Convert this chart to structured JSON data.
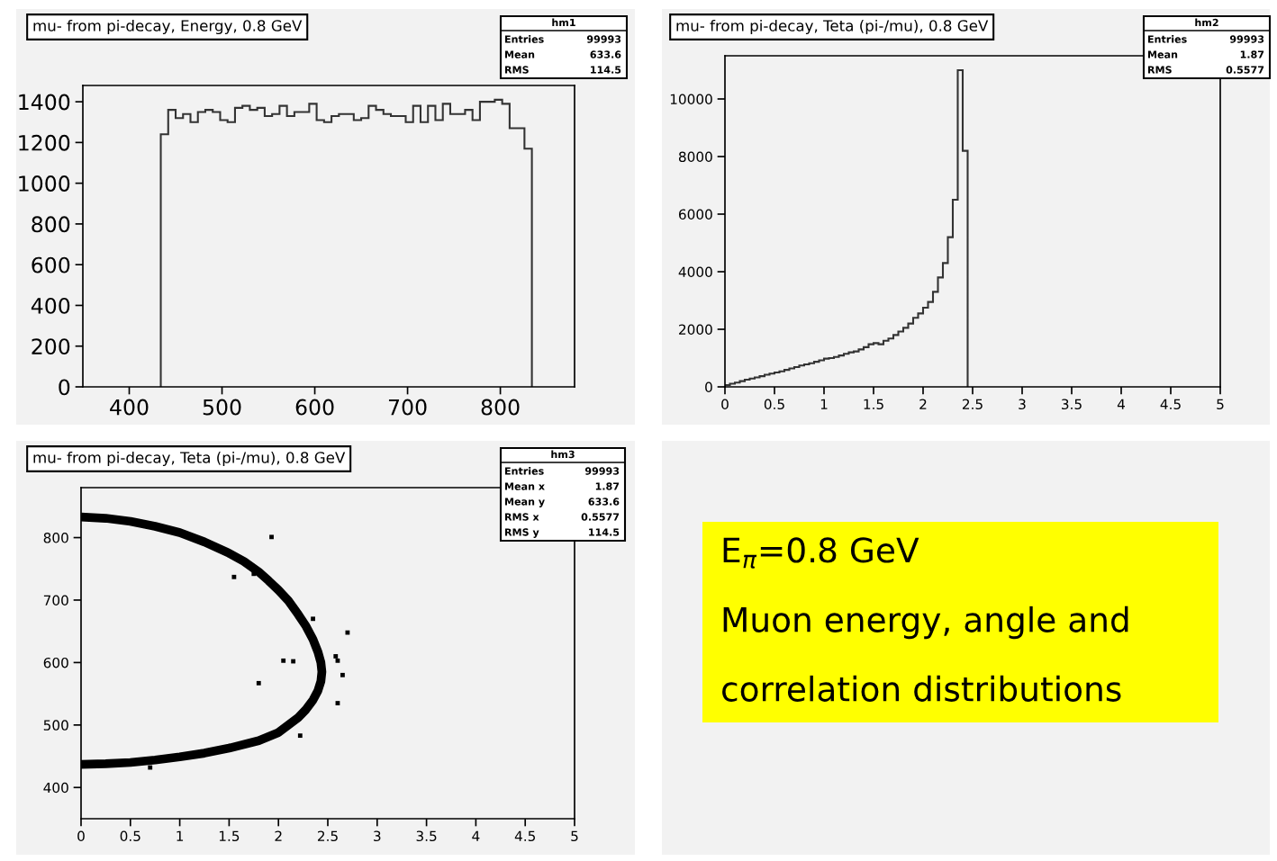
{
  "chart_data": [
    {
      "type": "histogram",
      "title": "mu- from pi-decay, Energy, 0.8 GeV",
      "color": "#333333",
      "bins": [
        434,
        442,
        450,
        458,
        466,
        474,
        482,
        490,
        498,
        506,
        514,
        522,
        530,
        538,
        546,
        554,
        562,
        570,
        578,
        586,
        594,
        602,
        610,
        618,
        626,
        634,
        642,
        650,
        658,
        666,
        674,
        682,
        690,
        698,
        706,
        714,
        722,
        730,
        738,
        746,
        754,
        762,
        770,
        778,
        786,
        794,
        802,
        810,
        818,
        826,
        834
      ],
      "values": [
        1240,
        1360,
        1320,
        1340,
        1300,
        1350,
        1360,
        1350,
        1310,
        1300,
        1370,
        1380,
        1360,
        1370,
        1330,
        1340,
        1380,
        1330,
        1350,
        1350,
        1390,
        1310,
        1300,
        1330,
        1340,
        1340,
        1310,
        1320,
        1380,
        1360,
        1340,
        1330,
        1330,
        1300,
        1380,
        1300,
        1380,
        1310,
        1390,
        1340,
        1340,
        1360,
        1310,
        1400,
        1400,
        1410,
        1390,
        1270,
        1270,
        1170
      ],
      "xlim": [
        350,
        880
      ],
      "xticks": [
        400,
        500,
        600,
        700,
        800
      ],
      "ylim": [
        0,
        1480
      ],
      "yticks": [
        0,
        200,
        400,
        600,
        800,
        1000,
        1200,
        1400
      ],
      "grid": false,
      "annotations": [
        "hm1",
        "Entries",
        "99993",
        "Mean",
        "633.6",
        "RMS",
        "114.5"
      ]
    },
    {
      "type": "histogram",
      "title": "mu- from pi-decay, Teta (pi-/mu), 0.8 GeV",
      "color": "#333333",
      "bins": [
        0,
        0.05,
        0.1,
        0.15,
        0.2,
        0.25,
        0.3,
        0.35,
        0.4,
        0.45,
        0.5,
        0.55,
        0.6,
        0.65,
        0.7,
        0.75,
        0.8,
        0.85,
        0.9,
        0.95,
        1.0,
        1.05,
        1.1,
        1.15,
        1.2,
        1.25,
        1.3,
        1.35,
        1.4,
        1.45,
        1.5,
        1.55,
        1.6,
        1.65,
        1.7,
        1.75,
        1.8,
        1.85,
        1.9,
        1.95,
        2.0,
        2.05,
        2.1,
        2.15,
        2.2,
        2.25,
        2.3,
        2.35,
        2.4,
        2.45
      ],
      "values": [
        60,
        110,
        150,
        200,
        250,
        290,
        330,
        370,
        420,
        460,
        500,
        540,
        590,
        640,
        690,
        740,
        780,
        820,
        870,
        920,
        980,
        1000,
        1040,
        1090,
        1150,
        1200,
        1230,
        1300,
        1380,
        1480,
        1520,
        1480,
        1600,
        1680,
        1800,
        1920,
        2050,
        2200,
        2400,
        2550,
        2750,
        2950,
        3300,
        3800,
        4300,
        5200,
        6500,
        11000,
        8200
      ],
      "xlim": [
        0,
        5
      ],
      "xticks": [
        0,
        0.5,
        1,
        1.5,
        2,
        2.5,
        3,
        3.5,
        4,
        4.5,
        5
      ],
      "ylim": [
        0,
        11500
      ],
      "yticks": [
        0,
        2000,
        4000,
        6000,
        8000,
        10000
      ],
      "grid": false,
      "annotations": [
        "hm2",
        "Entries",
        "99993",
        "Mean",
        "1.87",
        "RMS",
        "0.5577"
      ]
    },
    {
      "type": "scatter",
      "title": "mu- from pi-decay, Teta (pi-/mu), 0.8 GeV",
      "series": [
        {
          "type": "line",
          "color": "#000000",
          "x": [
            0,
            0.25,
            0.5,
            0.75,
            1.0,
            1.25,
            1.5,
            1.65,
            1.8,
            1.9,
            2.0,
            2.1,
            2.2,
            2.28,
            2.35,
            2.4,
            2.43,
            2.44,
            2.43,
            2.4,
            2.35,
            2.28,
            2.2,
            2.1,
            2.0,
            1.8,
            1.5,
            1.25,
            1.0,
            0.75,
            0.5,
            0.25,
            0
          ],
          "values": [
            833,
            831,
            826,
            818,
            808,
            793,
            775,
            762,
            745,
            731,
            716,
            699,
            677,
            658,
            637,
            617,
            600,
            585,
            570,
            555,
            540,
            525,
            512,
            500,
            488,
            475,
            463,
            455,
            449,
            444,
            440,
            438,
            437
          ]
        },
        {
          "type": "scatter",
          "color": "#000000",
          "marker": "square",
          "x": [
            1.93,
            2.7,
            1.8,
            2.6,
            2.65,
            0.7,
            2.6,
            1.55,
            2.35,
            2.58,
            2.05,
            2.22,
            1.75,
            2.15
          ],
          "values": [
            801,
            648,
            567,
            535,
            580,
            432,
            603,
            737,
            670,
            610,
            603,
            483,
            742,
            602
          ]
        }
      ],
      "xlim": [
        0,
        5
      ],
      "xticks": [
        0,
        0.5,
        1,
        1.5,
        2,
        2.5,
        3,
        3.5,
        4,
        4.5,
        5
      ],
      "ylim": [
        350,
        880
      ],
      "yticks": [
        400,
        500,
        600,
        700,
        800
      ],
      "grid": false,
      "annotations": [
        "hm3",
        "Entries",
        "99993",
        "Mean x",
        "1.87",
        "Mean y",
        "633.6",
        "RMS x",
        "0.5577",
        "RMS y",
        "114.5"
      ]
    },
    {
      "type": "other",
      "color": "#ffff00",
      "annotations": [
        "E$_{π}$=0.8 GeV",
        "Muon energy, angle and",
        "correlation distributions"
      ]
    }
  ]
}
